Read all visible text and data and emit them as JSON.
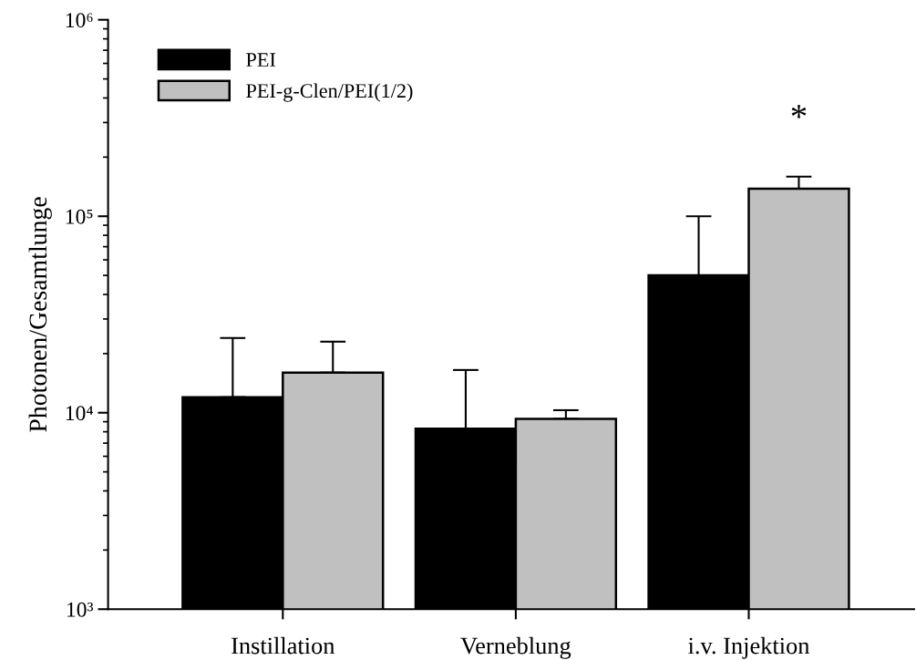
{
  "chart_data": {
    "type": "bar",
    "ylabel": "Photonen/Gesamtlunge",
    "categories": [
      "Instillation",
      "Verneblung",
      "i.v. Injektion"
    ],
    "series": [
      {
        "name": "PEI",
        "color": "#000000",
        "values": [
          12000,
          8300,
          50000
        ],
        "errors": [
          [
            12000,
            24000
          ],
          [
            8300,
            16500
          ],
          [
            50000,
            100000
          ]
        ]
      },
      {
        "name": "PEI-g-Clen/PEI(1/2)",
        "color": "#c0c0c0",
        "values": [
          16000,
          9300,
          138000
        ],
        "errors": [
          [
            16000,
            23000
          ],
          [
            9300,
            10300
          ],
          [
            138000,
            159000
          ]
        ]
      }
    ],
    "log": true,
    "ylim": [
      1000,
      1000000
    ],
    "yticks": [
      {
        "value": 1000,
        "label": "10³"
      },
      {
        "value": 10000,
        "label": "10⁴"
      },
      {
        "value": 100000,
        "label": "10⁵"
      },
      {
        "value": 1000000,
        "label": "10⁶"
      }
    ],
    "legend": "top left",
    "grid": false,
    "annotations": [
      "*"
    ]
  }
}
